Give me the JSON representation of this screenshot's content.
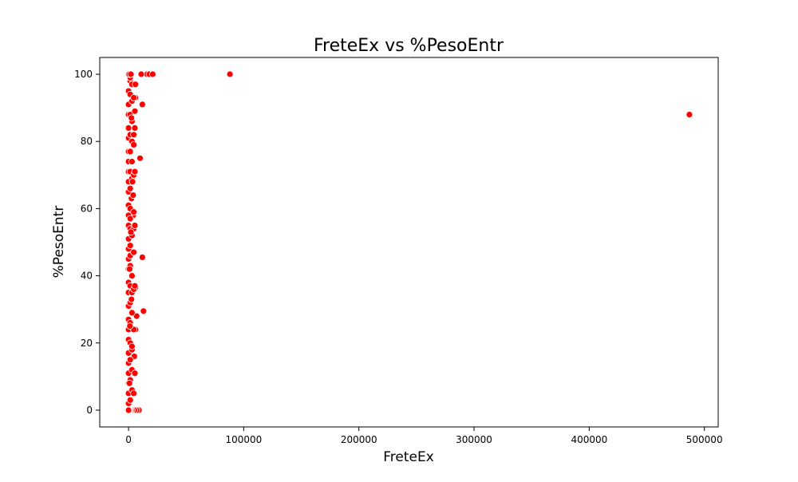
{
  "chart_data": {
    "type": "scatter",
    "title": "FreteEx vs %PesoEntr",
    "xlabel": "FreteEx",
    "ylabel": "%PesoEntr",
    "xlim": [
      -25000,
      512000
    ],
    "ylim": [
      -5,
      105
    ],
    "xticks": [
      0,
      100000,
      200000,
      300000,
      400000,
      500000
    ],
    "xtick_labels": [
      "0",
      "100000",
      "200000",
      "300000",
      "400000",
      "500000"
    ],
    "yticks": [
      0,
      20,
      40,
      60,
      80,
      100
    ],
    "ytick_labels": [
      "0",
      "20",
      "40",
      "60",
      "80",
      "100"
    ],
    "grid": false,
    "legend": "none",
    "marker_color": "#ff0000",
    "marker_edge_color": "#ffffff",
    "series": [
      {
        "x": [
          88000,
          487000,
          12000,
          10000,
          12000,
          13000,
          4000,
          7000,
          6000,
          5000,
          6000,
          6000,
          16000,
          18000,
          21000,
          11000,
          9000,
          7000,
          5000,
          3000,
          2000,
          1000,
          500,
          0,
          0,
          0,
          0,
          0,
          0,
          0,
          0,
          0,
          0,
          0,
          0,
          0,
          0,
          0,
          0,
          0,
          0,
          0,
          0,
          0,
          0,
          0,
          0,
          0,
          0,
          0,
          0,
          0,
          0,
          1500,
          1500,
          1500,
          1500,
          1500,
          1500,
          1500,
          1500,
          1500,
          1500,
          1500,
          1500,
          1500,
          1500,
          1500,
          1500,
          1500,
          1500,
          1500,
          1500,
          1500,
          3000,
          3000,
          3000,
          3000,
          3000,
          3000,
          3000,
          3000,
          3000,
          3000,
          3000,
          3000,
          3000,
          3000,
          4500,
          4500,
          4500,
          4500,
          4500,
          4500,
          4500,
          4500,
          4500,
          4500,
          5500,
          5500,
          5500,
          5500,
          5500,
          5500,
          3000,
          2500,
          2000,
          1000,
          500,
          2500,
          3500,
          2000,
          1000,
          4000,
          2500,
          1200,
          800,
          6000,
          2000
        ],
        "y": [
          100,
          88,
          91,
          75,
          45.5,
          29.5,
          58,
          28,
          36.5,
          16,
          24,
          93,
          100,
          100,
          100,
          100,
          0,
          0,
          0,
          0,
          0,
          0,
          0,
          0,
          2,
          5,
          8,
          11,
          14,
          17,
          21,
          24,
          27,
          31,
          35,
          38,
          42,
          45,
          48,
          51,
          55,
          58,
          61,
          65,
          68,
          71,
          74,
          77,
          81,
          84,
          88,
          91,
          95,
          98,
          3,
          9,
          15,
          20,
          26,
          32,
          37,
          43,
          49,
          54,
          60,
          66,
          71,
          77,
          82,
          88,
          94,
          99,
          46,
          57,
          6,
          18,
          29,
          40,
          52,
          63,
          74,
          86,
          97,
          12,
          35,
          69,
          80,
          92,
          5,
          24,
          36,
          47,
          59,
          70,
          82,
          93,
          54,
          79,
          11,
          37,
          55,
          84,
          71,
          89,
          19,
          63,
          100,
          100,
          100,
          33,
          68,
          53,
          42,
          64,
          87,
          25,
          8,
          97,
          100
        ]
      }
    ]
  }
}
